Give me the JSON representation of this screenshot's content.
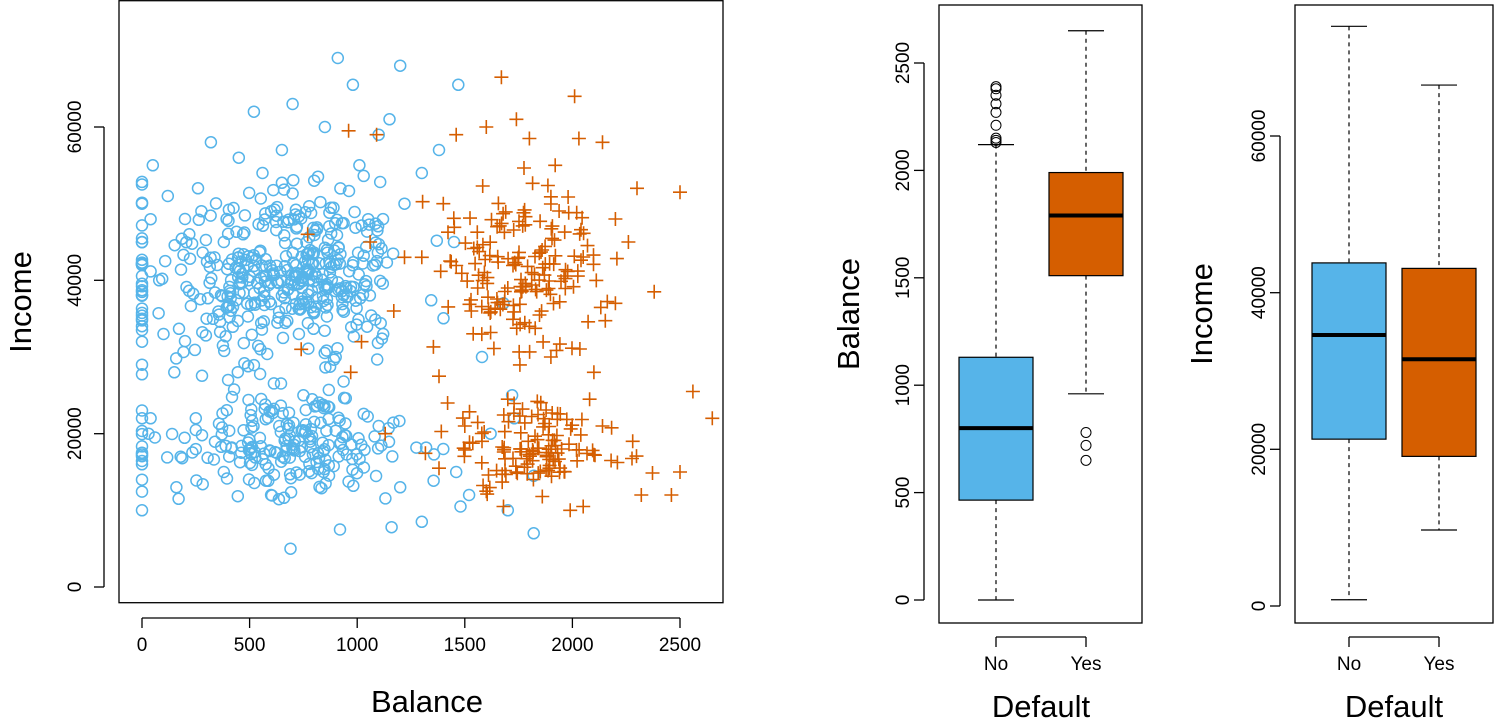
{
  "colors": {
    "no": "#56B4E9",
    "yes": "#D55E00"
  },
  "chart_data": [
    {
      "type": "scatter",
      "title": "",
      "xlabel": "Balance",
      "ylabel": "Income",
      "xlim": [
        -100,
        2750
      ],
      "ylim": [
        -2000,
        75000
      ],
      "xticks": [
        "0",
        "500",
        "1000",
        "1500",
        "2000",
        "2500"
      ],
      "yticks": [
        "0",
        "20000",
        "40000",
        "60000"
      ],
      "grid": false,
      "legend": "none",
      "series": [
        {
          "marker": "circle",
          "color": "#56B4E9",
          "n_points": 700,
          "points": [
            [
              50,
              55000
            ],
            [
              120,
              51000
            ],
            [
              200,
              48000
            ],
            [
              260,
              52000
            ],
            [
              320,
              58000
            ],
            [
              380,
              45000
            ],
            [
              450,
              56000
            ],
            [
              520,
              62000
            ],
            [
              560,
              54000
            ],
            [
              600,
              49000
            ],
            [
              650,
              57000
            ],
            [
              700,
              63000
            ],
            [
              720,
              47000
            ],
            [
              800,
              53000
            ],
            [
              850,
              60000
            ],
            [
              910,
              69000
            ],
            [
              980,
              65500
            ],
            [
              1010,
              55000
            ],
            [
              1100,
              59000
            ],
            [
              1150,
              61000
            ],
            [
              1200,
              68000
            ],
            [
              1220,
              50000
            ],
            [
              1300,
              54000
            ],
            [
              1380,
              57000
            ],
            [
              1470,
              65500
            ],
            [
              0,
              52500
            ],
            [
              0,
              50000
            ],
            [
              0,
              45000
            ],
            [
              0,
              42000
            ],
            [
              0,
              38000
            ],
            [
              0,
              35000
            ],
            [
              0,
              32000
            ],
            [
              0,
              29000
            ],
            [
              0,
              22000
            ],
            [
              0,
              16000
            ],
            [
              0,
              14000
            ],
            [
              0,
              10000
            ],
            [
              30,
              20000
            ],
            [
              60,
              19500
            ],
            [
              180,
              17000
            ],
            [
              160,
              13000
            ],
            [
              170,
              11500
            ],
            [
              600,
              12000
            ],
            [
              690,
              5000
            ],
            [
              920,
              7500
            ],
            [
              1160,
              7800
            ],
            [
              1300,
              8500
            ],
            [
              1460,
              15000
            ],
            [
              1520,
              12000
            ],
            [
              1480,
              10500
            ],
            [
              1820,
              7000
            ],
            [
              1700,
              10000
            ],
            [
              1820,
              14500
            ],
            [
              1730,
              22000
            ],
            [
              1580,
              30000
            ],
            [
              1680,
              37000
            ],
            [
              1450,
              45000
            ],
            [
              1720,
              25000
            ],
            [
              1620,
              20000
            ],
            [
              1400,
              18000
            ],
            [
              1200,
              13000
            ],
            [
              1100,
              21000
            ],
            [
              900,
              30000
            ],
            [
              750,
              25000
            ],
            [
              650,
              38000
            ],
            [
              550,
              31000
            ],
            [
              500,
              18000
            ],
            [
              400,
              27000
            ],
            [
              350,
              42000
            ],
            [
              300,
              35000
            ],
            [
              250,
              22000
            ],
            [
              150,
              28000
            ],
            [
              100,
              33000
            ],
            [
              80,
              40000
            ],
            [
              220,
              46000
            ]
          ]
        },
        {
          "marker": "plus",
          "color": "#D55E00",
          "n_points": 333,
          "points": [
            [
              1670,
              66500
            ],
            [
              2010,
              64000
            ],
            [
              1740,
              61000
            ],
            [
              1600,
              60000
            ],
            [
              1800,
              58500
            ],
            [
              2030,
              58500
            ],
            [
              2140,
              58000
            ],
            [
              1460,
              59000
            ],
            [
              1920,
              55000
            ],
            [
              2300,
              52000
            ],
            [
              2500,
              51500
            ],
            [
              2200,
              48000
            ],
            [
              2260,
              45000
            ],
            [
              2380,
              38500
            ],
            [
              2200,
              37000
            ],
            [
              2650,
              22000
            ],
            [
              2560,
              25500
            ],
            [
              2500,
              15000
            ],
            [
              2320,
              12000
            ],
            [
              2460,
              12000
            ],
            [
              2280,
              19000
            ],
            [
              2140,
              21000
            ],
            [
              2050,
              10500
            ],
            [
              1990,
              10000
            ],
            [
              1860,
              11800
            ],
            [
              1680,
              10500
            ],
            [
              1600,
              12500
            ],
            [
              1740,
              15000
            ],
            [
              1880,
              17000
            ],
            [
              1950,
              18000
            ],
            [
              1500,
              21000
            ],
            [
              1420,
              24000
            ],
            [
              1380,
              27500
            ],
            [
              1530,
              36000
            ],
            [
              1560,
              39000
            ],
            [
              1700,
              39000
            ],
            [
              1800,
              34000
            ],
            [
              1900,
              30000
            ],
            [
              2100,
              28000
            ],
            [
              1750,
              43000
            ],
            [
              1650,
              47000
            ],
            [
              1400,
              50000
            ],
            [
              1300,
              43000
            ],
            [
              1170,
              36000
            ],
            [
              1020,
              32000
            ],
            [
              970,
              28000
            ],
            [
              1060,
              45000
            ],
            [
              1090,
              59000
            ],
            [
              960,
              59500
            ],
            [
              770,
              46000
            ],
            [
              740,
              31000
            ],
            [
              1220,
              43000
            ],
            [
              1130,
              20000
            ],
            [
              1380,
              15500
            ],
            [
              1580,
              19000
            ],
            [
              1840,
              22500
            ],
            [
              2080,
              24500
            ],
            [
              2180,
              16500
            ],
            [
              1900,
              17500
            ],
            [
              1700,
              24500
            ]
          ]
        }
      ]
    },
    {
      "type": "box",
      "title": "",
      "xlabel": "Default",
      "ylabel": "Balance",
      "ylim": [
        -100,
        2750
      ],
      "categories": [
        "No",
        "Yes"
      ],
      "yticks": [
        "0",
        "500",
        "1000",
        "1500",
        "2000",
        "2500"
      ],
      "boxes": [
        {
          "category": "No",
          "min": 0,
          "q1": 465,
          "median": 800,
          "q3": 1130,
          "max": 2120,
          "outliers": [
            2130,
            2140,
            2150,
            2210,
            2270,
            2310,
            2350,
            2380,
            2390
          ],
          "color": "#56B4E9"
        },
        {
          "category": "Yes",
          "min": 960,
          "q1": 1510,
          "median": 1790,
          "q3": 1990,
          "max": 2650,
          "outliers": [
            650,
            720,
            780
          ],
          "color": "#D55E00"
        }
      ]
    },
    {
      "type": "box",
      "title": "",
      "xlabel": "Default",
      "ylabel": "Income",
      "ylim": [
        -2000,
        76000
      ],
      "categories": [
        "No",
        "Yes"
      ],
      "yticks": [
        "0",
        "20000",
        "40000",
        "60000"
      ],
      "boxes": [
        {
          "category": "No",
          "min": 800,
          "q1": 21300,
          "median": 34600,
          "q3": 43800,
          "max": 74000,
          "outliers": [],
          "color": "#56B4E9"
        },
        {
          "category": "Yes",
          "min": 9700,
          "q1": 19100,
          "median": 31500,
          "q3": 43100,
          "max": 66500,
          "outliers": [],
          "color": "#D55E00"
        }
      ]
    }
  ]
}
